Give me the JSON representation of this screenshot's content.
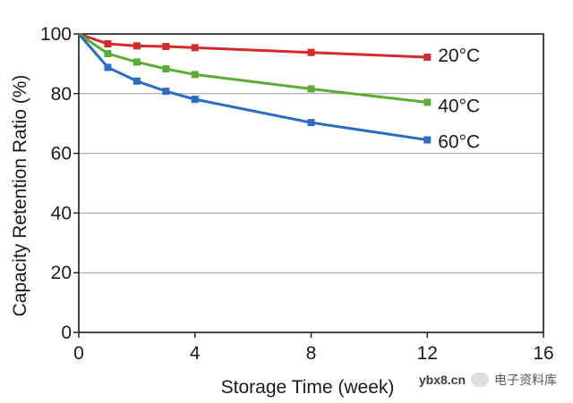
{
  "chart_data": {
    "type": "line",
    "title": "",
    "xlabel": "Storage Time (week)",
    "ylabel": "Capacity Retention Ratio (%)",
    "xlim": [
      0,
      16
    ],
    "ylim": [
      0,
      100
    ],
    "xticks": [
      0,
      4,
      8,
      12,
      16
    ],
    "yticks": [
      0,
      20,
      40,
      60,
      80,
      100
    ],
    "grid": true,
    "series": [
      {
        "name": "20°C",
        "color": "#d42a2a",
        "x": [
          0,
          1,
          2,
          3,
          4,
          8,
          12
        ],
        "values": [
          100,
          96.7,
          96.0,
          95.8,
          95.4,
          93.8,
          92.2
        ]
      },
      {
        "name": "40°C",
        "color": "#5aac32",
        "x": [
          0,
          1,
          2,
          3,
          4,
          8,
          12
        ],
        "values": [
          100,
          93.4,
          90.6,
          88.3,
          86.4,
          81.6,
          77.1
        ]
      },
      {
        "name": "60°C",
        "color": "#2c6cc0",
        "x": [
          0,
          1,
          2,
          3,
          4,
          8,
          12
        ],
        "values": [
          100,
          88.8,
          84.2,
          80.8,
          78.1,
          70.3,
          64.5
        ]
      }
    ]
  },
  "watermark": {
    "domain": "ybx8.cn",
    "name": "电子资料库"
  }
}
